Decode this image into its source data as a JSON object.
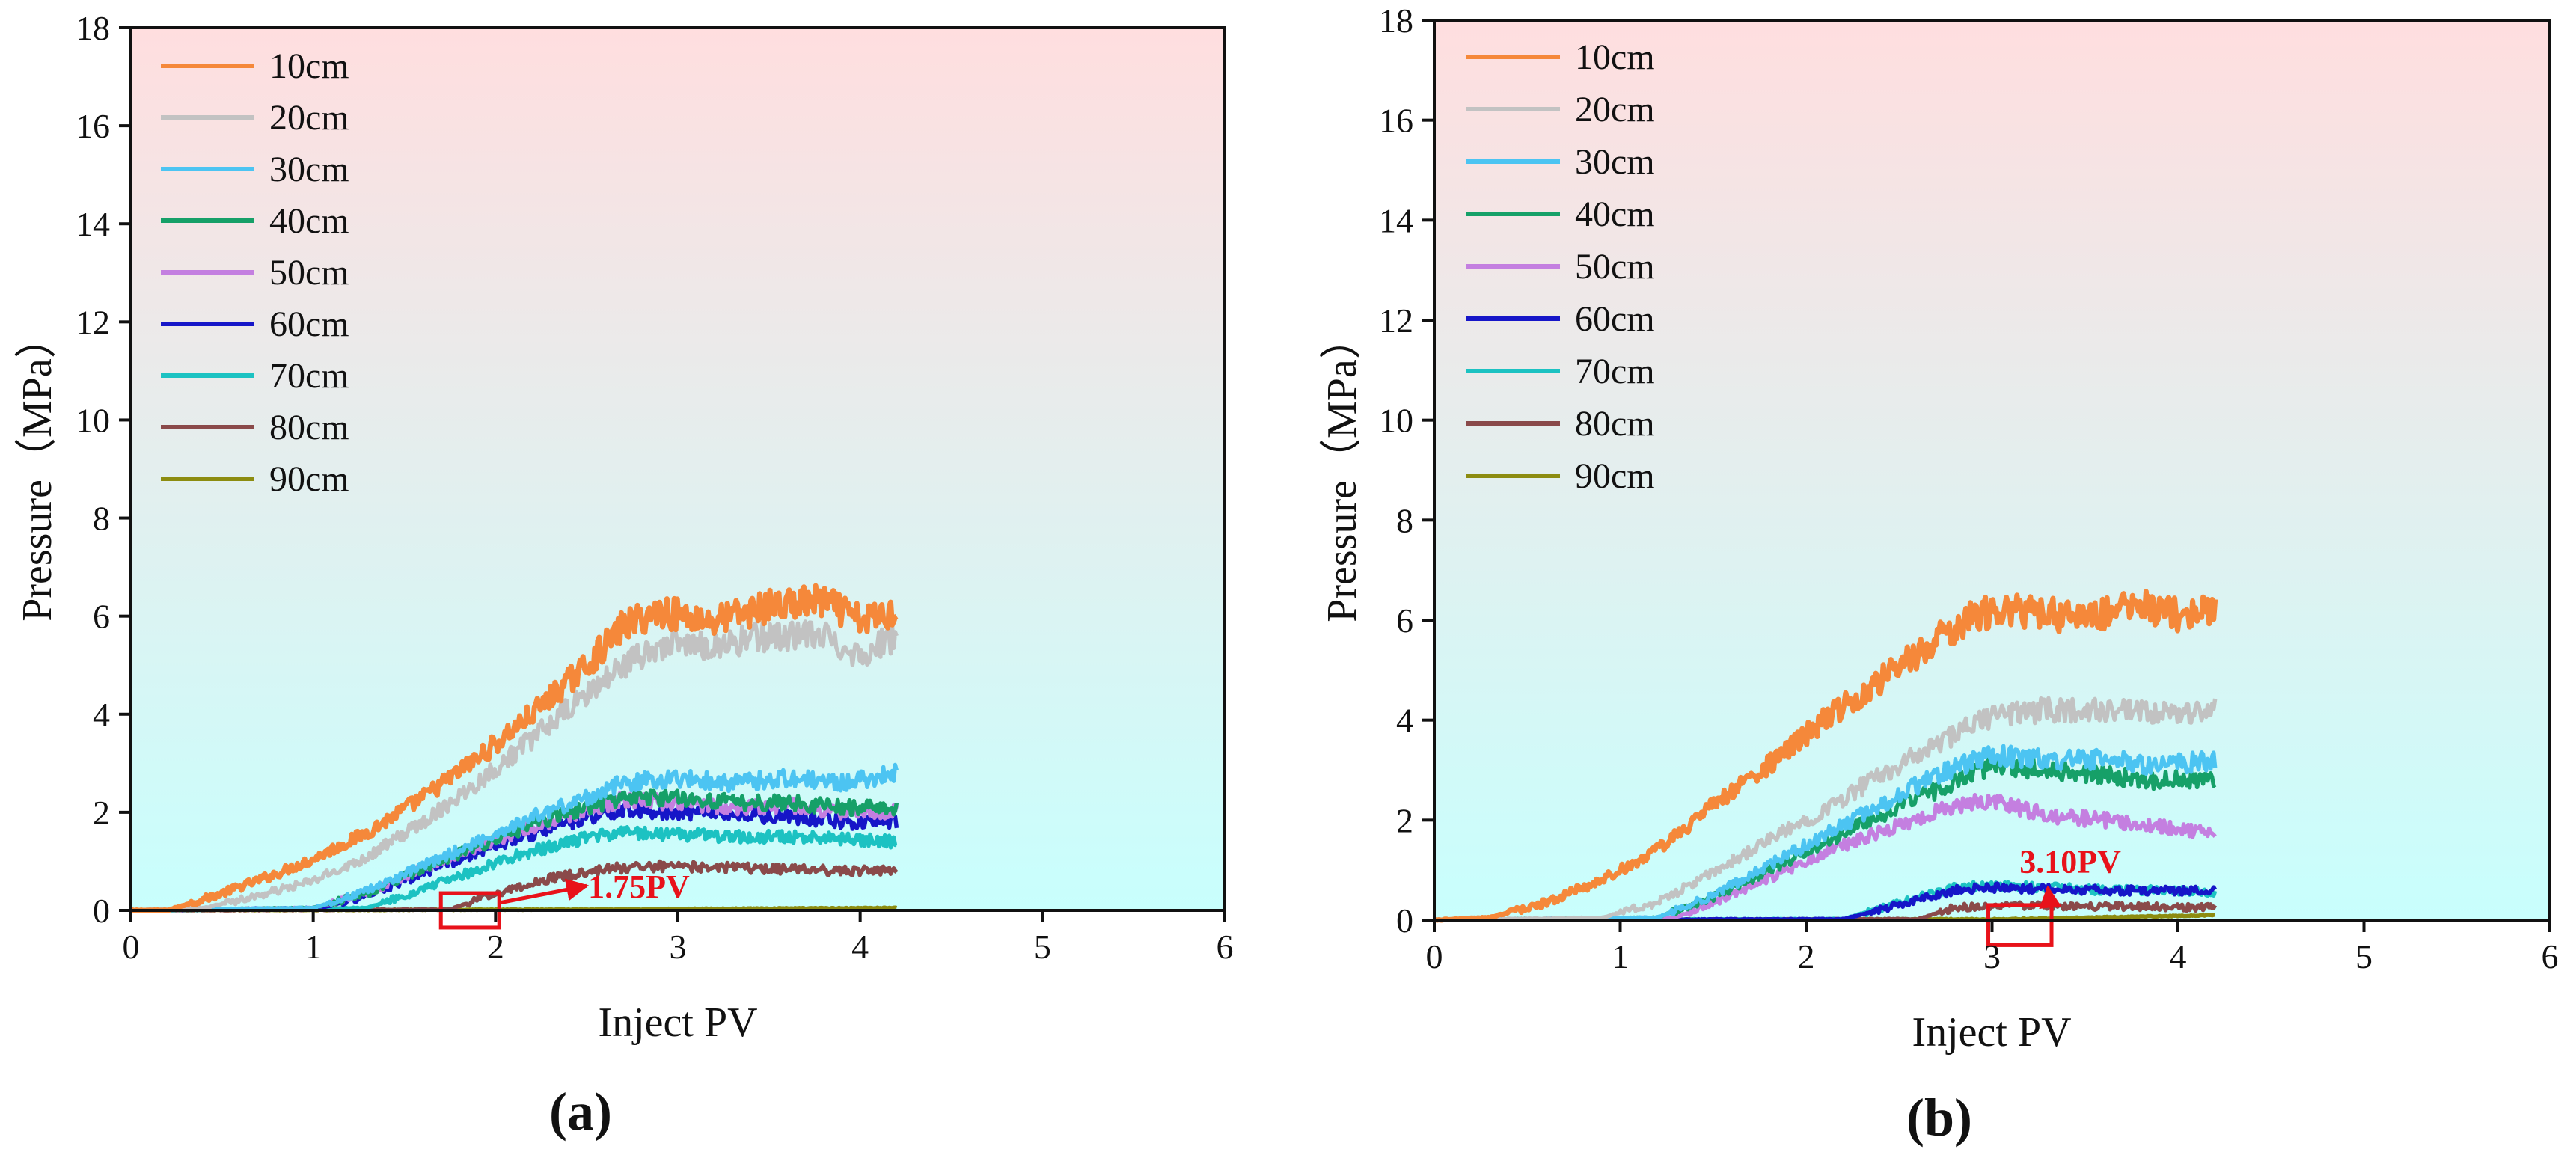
{
  "chart_data": [
    {
      "type": "line",
      "panel_label": "(a)",
      "xlabel": "Inject PV",
      "ylabel": "Pressure（MPa）",
      "xlim": [
        0,
        6
      ],
      "ylim": [
        0,
        18
      ],
      "xticks": [
        "0",
        "1",
        "2",
        "3",
        "4",
        "5",
        "6"
      ],
      "yticks": [
        "0",
        "2",
        "4",
        "6",
        "8",
        "10",
        "12",
        "14",
        "16",
        "18"
      ],
      "background_gradient": [
        "#ffdedf",
        "#c8fffd"
      ],
      "legend_position": "top-left",
      "annotation": {
        "text": "1.75PV",
        "x": 1.75,
        "box_x": [
          1.7,
          2.02
        ],
        "box_y": [
          -0.35,
          0.35
        ],
        "arrow_to": [
          2.5,
          0.5
        ],
        "color": "#e8121a"
      },
      "series": [
        {
          "name": "10cm",
          "color": "#f5883a",
          "x": [
            0.0,
            0.2,
            0.5,
            0.8,
            1.0,
            1.3,
            1.6,
            1.9,
            2.2,
            2.5,
            2.7,
            2.9,
            3.2,
            3.5,
            3.8,
            4.0,
            4.2
          ],
          "y": [
            0.0,
            0.0,
            0.35,
            0.75,
            1.05,
            1.6,
            2.3,
            3.1,
            4.0,
            5.0,
            5.8,
            6.1,
            5.9,
            6.2,
            6.3,
            5.9,
            6.1
          ]
        },
        {
          "name": "20cm",
          "color": "#c2c2c2",
          "x": [
            0.0,
            0.4,
            0.7,
            1.0,
            1.3,
            1.6,
            1.9,
            2.2,
            2.5,
            2.7,
            2.9,
            3.2,
            3.5,
            3.8,
            4.0,
            4.2
          ],
          "y": [
            0.0,
            0.05,
            0.3,
            0.6,
            1.1,
            1.8,
            2.6,
            3.5,
            4.4,
            5.0,
            5.4,
            5.4,
            5.6,
            5.6,
            5.2,
            5.6
          ]
        },
        {
          "name": "30cm",
          "color": "#4cc4f2",
          "x": [
            0.0,
            1.0,
            1.3,
            1.6,
            1.9,
            2.2,
            2.5,
            2.7,
            3.0,
            3.3,
            3.6,
            3.9,
            4.2
          ],
          "y": [
            0.0,
            0.05,
            0.4,
            0.9,
            1.4,
            1.9,
            2.3,
            2.6,
            2.7,
            2.6,
            2.7,
            2.6,
            2.8
          ]
        },
        {
          "name": "40cm",
          "color": "#16a068",
          "x": [
            0.0,
            1.0,
            1.3,
            1.6,
            1.9,
            2.2,
            2.5,
            2.7,
            3.0,
            3.3,
            3.6,
            3.9,
            4.2
          ],
          "y": [
            0.0,
            0.05,
            0.35,
            0.85,
            1.3,
            1.75,
            2.1,
            2.3,
            2.3,
            2.2,
            2.2,
            2.1,
            2.1
          ]
        },
        {
          "name": "50cm",
          "color": "#c47fe0",
          "x": [
            0.0,
            1.0,
            1.3,
            1.6,
            1.9,
            2.2,
            2.5,
            2.7,
            3.0,
            3.3,
            3.6,
            3.9,
            4.2
          ],
          "y": [
            0.0,
            0.05,
            0.35,
            0.85,
            1.3,
            1.7,
            2.05,
            2.25,
            2.2,
            2.1,
            2.15,
            2.0,
            2.0
          ]
        },
        {
          "name": "60cm",
          "color": "#1616c8",
          "x": [
            0.0,
            1.05,
            1.3,
            1.6,
            1.9,
            2.2,
            2.5,
            2.7,
            3.0,
            3.3,
            3.6,
            3.9,
            4.2
          ],
          "y": [
            0.0,
            0.05,
            0.3,
            0.75,
            1.2,
            1.55,
            1.9,
            2.05,
            2.0,
            1.95,
            1.9,
            1.8,
            1.8
          ]
        },
        {
          "name": "70cm",
          "color": "#1cc2c2",
          "x": [
            0.0,
            1.3,
            1.5,
            1.8,
            2.1,
            2.4,
            2.7,
            3.0,
            3.3,
            3.6,
            3.9,
            4.2
          ],
          "y": [
            0.0,
            0.05,
            0.3,
            0.7,
            1.1,
            1.4,
            1.6,
            1.55,
            1.5,
            1.5,
            1.45,
            1.4
          ]
        },
        {
          "name": "80cm",
          "color": "#8a4a4a",
          "x": [
            0.0,
            1.75,
            2.0,
            2.3,
            2.6,
            2.9,
            3.2,
            3.5,
            3.8,
            4.2
          ],
          "y": [
            0.0,
            0.02,
            0.35,
            0.65,
            0.85,
            0.9,
            0.88,
            0.85,
            0.82,
            0.8
          ]
        },
        {
          "name": "90cm",
          "color": "#8c8c10",
          "x": [
            0.0,
            2.5,
            4.2
          ],
          "y": [
            0.0,
            0.02,
            0.05
          ]
        }
      ]
    },
    {
      "type": "line",
      "panel_label": "(b)",
      "xlabel": "Inject PV",
      "ylabel": "Pressure（MPa）",
      "xlim": [
        0,
        6
      ],
      "ylim": [
        0,
        18
      ],
      "xticks": [
        "0",
        "1",
        "2",
        "3",
        "4",
        "5",
        "6"
      ],
      "yticks": [
        "0",
        "2",
        "4",
        "6",
        "8",
        "10",
        "12",
        "14",
        "16",
        "18"
      ],
      "background_gradient": [
        "#ffdedf",
        "#c8fffd"
      ],
      "legend_position": "top-left",
      "annotation": {
        "text": "3.10PV",
        "x": 3.1,
        "box_x": [
          2.98,
          3.32
        ],
        "box_y": [
          -0.5,
          0.3
        ],
        "arrow_to": [
          3.3,
          0.65
        ],
        "color": "#e8121a"
      },
      "series": [
        {
          "name": "10cm",
          "color": "#f5883a",
          "x": [
            0.0,
            0.3,
            0.6,
            0.9,
            1.2,
            1.5,
            1.8,
            2.1,
            2.4,
            2.7,
            2.9,
            3.2,
            3.5,
            3.8,
            4.0,
            4.2
          ],
          "y": [
            0.0,
            0.05,
            0.35,
            0.8,
            1.4,
            2.3,
            3.1,
            4.0,
            4.8,
            5.6,
            6.1,
            6.2,
            6.0,
            6.3,
            6.1,
            6.2
          ]
        },
        {
          "name": "20cm",
          "color": "#c2c2c2",
          "x": [
            0.0,
            0.9,
            1.2,
            1.5,
            1.8,
            2.1,
            2.4,
            2.7,
            3.0,
            3.3,
            3.6,
            3.9,
            4.2
          ],
          "y": [
            0.0,
            0.05,
            0.35,
            0.95,
            1.6,
            2.2,
            2.9,
            3.5,
            4.1,
            4.2,
            4.2,
            4.1,
            4.2
          ]
        },
        {
          "name": "30cm",
          "color": "#4cc4f2",
          "x": [
            0.0,
            1.2,
            1.5,
            1.8,
            2.1,
            2.4,
            2.7,
            3.0,
            3.3,
            3.6,
            3.9,
            4.2
          ],
          "y": [
            0.0,
            0.05,
            0.5,
            1.1,
            1.7,
            2.3,
            2.9,
            3.3,
            3.2,
            3.2,
            3.1,
            3.2
          ]
        },
        {
          "name": "40cm",
          "color": "#16a068",
          "x": [
            0.0,
            1.2,
            1.5,
            1.8,
            2.1,
            2.4,
            2.7,
            3.0,
            3.3,
            3.6,
            3.9,
            4.2
          ],
          "y": [
            0.0,
            0.05,
            0.45,
            1.0,
            1.55,
            2.1,
            2.6,
            3.1,
            3.0,
            2.9,
            2.8,
            2.8
          ]
        },
        {
          "name": "50cm",
          "color": "#c47fe0",
          "x": [
            0.0,
            1.3,
            1.6,
            1.9,
            2.2,
            2.5,
            2.8,
            3.0,
            3.3,
            3.6,
            3.9,
            4.2
          ],
          "y": [
            0.0,
            0.05,
            0.5,
            1.0,
            1.5,
            1.9,
            2.3,
            2.4,
            2.1,
            2.0,
            1.9,
            1.7
          ]
        },
        {
          "name": "60cm",
          "color": "#1616c8",
          "x": [
            0.0,
            2.2,
            2.5,
            2.8,
            3.0,
            3.3,
            3.6,
            3.9,
            4.2
          ],
          "y": [
            0.0,
            0.02,
            0.3,
            0.6,
            0.65,
            0.62,
            0.6,
            0.58,
            0.6
          ]
        },
        {
          "name": "70cm",
          "color": "#1cc2c2",
          "x": [
            0.0,
            2.2,
            2.5,
            2.8,
            3.0,
            3.3,
            3.6,
            3.9,
            4.2
          ],
          "y": [
            0.0,
            0.02,
            0.35,
            0.65,
            0.7,
            0.65,
            0.6,
            0.6,
            0.55
          ]
        },
        {
          "name": "80cm",
          "color": "#8a4a4a",
          "x": [
            0.0,
            2.6,
            2.8,
            3.1,
            3.4,
            3.7,
            4.0,
            4.2
          ],
          "y": [
            0.0,
            0.02,
            0.25,
            0.3,
            0.28,
            0.27,
            0.26,
            0.25
          ]
        },
        {
          "name": "90cm",
          "color": "#8c8c10",
          "x": [
            0.0,
            3.1,
            3.5,
            4.2
          ],
          "y": [
            0.0,
            0.02,
            0.05,
            0.1
          ]
        }
      ]
    }
  ]
}
